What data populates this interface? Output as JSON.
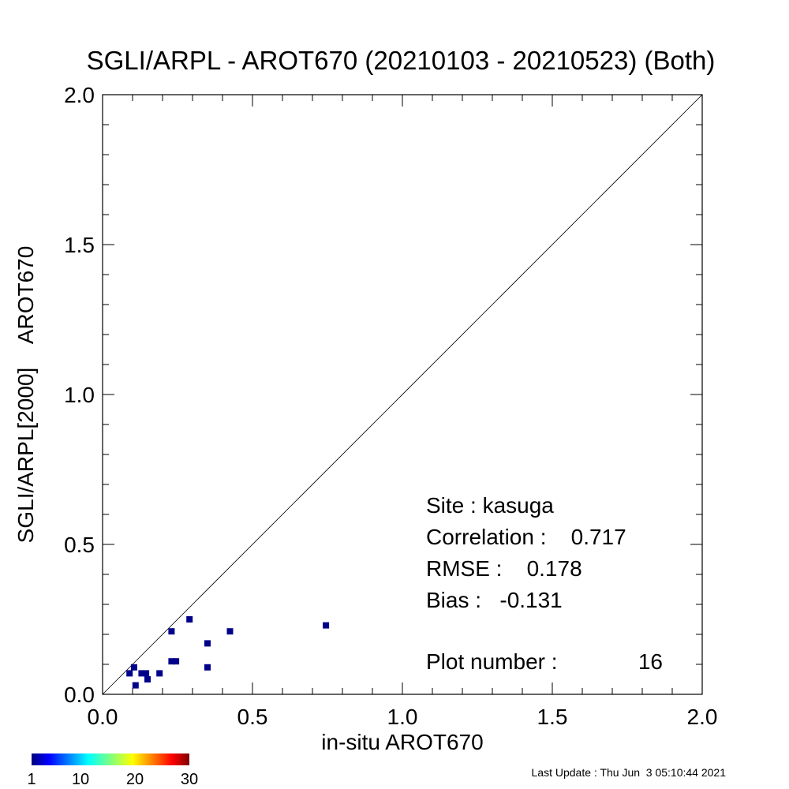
{
  "chart_data": {
    "type": "scatter",
    "title": "SGLI/ARPL - AROT670 (20210103 - 20210523) (Both)",
    "xlabel": "in-situ AROT670",
    "ylabel": "SGLI/ARPL[2000]    AROT670",
    "xlim": [
      0.0,
      2.0
    ],
    "ylim": [
      0.0,
      2.0
    ],
    "x_ticks": [
      "0.0",
      "0.5",
      "1.0",
      "1.5",
      "2.0"
    ],
    "y_ticks": [
      "0.0",
      "0.5",
      "1.0",
      "1.5",
      "2.0"
    ],
    "x_tick_values": [
      0.0,
      0.5,
      1.0,
      1.5,
      2.0
    ],
    "y_tick_values": [
      0.0,
      0.5,
      1.0,
      1.5,
      2.0
    ],
    "minor_ticks_per_major": 5,
    "one_to_one_line": true,
    "grid": false,
    "marker_color": "#00008b",
    "points": [
      {
        "x": 0.09,
        "y": 0.07
      },
      {
        "x": 0.105,
        "y": 0.09
      },
      {
        "x": 0.11,
        "y": 0.03
      },
      {
        "x": 0.13,
        "y": 0.07
      },
      {
        "x": 0.145,
        "y": 0.07
      },
      {
        "x": 0.15,
        "y": 0.05
      },
      {
        "x": 0.19,
        "y": 0.07
      },
      {
        "x": 0.23,
        "y": 0.21
      },
      {
        "x": 0.23,
        "y": 0.11
      },
      {
        "x": 0.245,
        "y": 0.11
      },
      {
        "x": 0.29,
        "y": 0.25
      },
      {
        "x": 0.35,
        "y": 0.17
      },
      {
        "x": 0.35,
        "y": 0.09
      },
      {
        "x": 0.425,
        "y": 0.21
      },
      {
        "x": 0.745,
        "y": 0.23
      }
    ],
    "stats": {
      "site_label": "Site : kasuga",
      "correlation_label": "Correlation :    0.717",
      "rmse_label": "RMSE :    0.178",
      "bias_label": "Bias :   -0.131",
      "plot_number_label": "Plot number :",
      "plot_number": "16"
    },
    "colorbar": {
      "tick_labels": [
        "1",
        "10",
        "20",
        "30"
      ],
      "tick_values": [
        1,
        10,
        20,
        30
      ],
      "range": [
        1,
        30
      ],
      "colormap": "jet"
    },
    "last_update": "Last Update : Thu Jun  3 05:10:44 2021"
  }
}
